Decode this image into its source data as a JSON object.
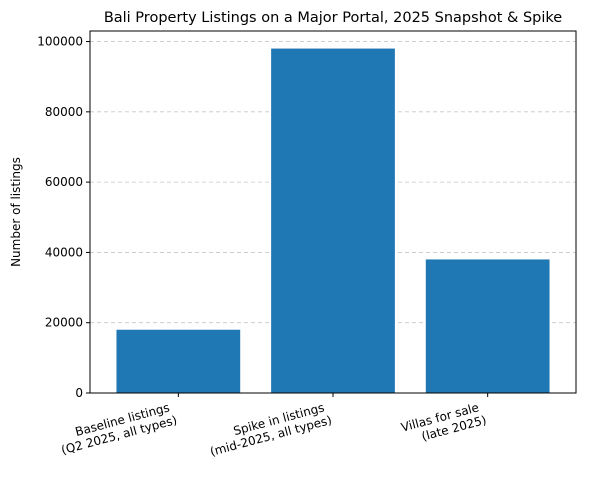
{
  "chart_data": {
    "type": "bar",
    "title": "Bali Property Listings on a Major Portal, 2025 Snapshot & Spike",
    "xlabel": "",
    "ylabel": "Number of listings",
    "categories": [
      [
        "Baseline listings",
        "(Q2 2025, all types)"
      ],
      [
        "Spike in listings",
        "(mid-2025, all types)"
      ],
      [
        "Villas for sale",
        "(late 2025)"
      ]
    ],
    "values": [
      18000,
      98000,
      38000
    ],
    "ylim": [
      0,
      103000
    ],
    "yticks": [
      0,
      20000,
      40000,
      60000,
      80000,
      100000
    ],
    "ytick_labels": [
      "0",
      "20000",
      "40000",
      "60000",
      "80000",
      "100000"
    ],
    "grid": "y-dashed",
    "bar_color": "#1f77b4",
    "x_tick_rotation": "rotated ~15°"
  }
}
